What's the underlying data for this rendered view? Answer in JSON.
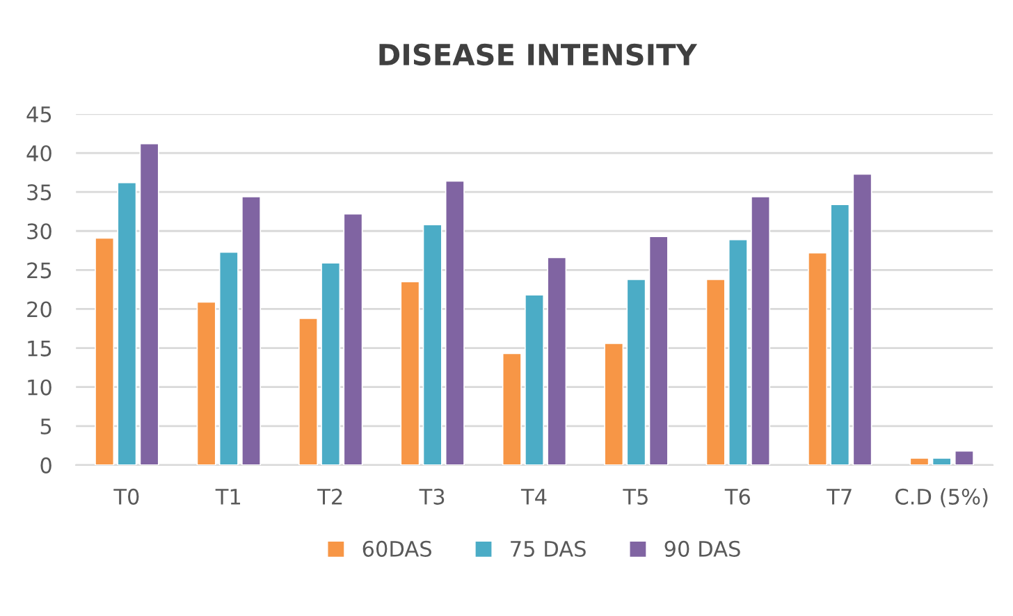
{
  "chart_data": {
    "type": "bar",
    "title": "DISEASE INTENSITY",
    "categories": [
      "T0",
      "T1",
      "T2",
      "T3",
      "T4",
      "T5",
      "T6",
      "T7",
      "C.D (5%)"
    ],
    "series": [
      {
        "name": "60DAS",
        "color": "#f79646",
        "values": [
          29.1,
          20.9,
          18.8,
          23.5,
          14.3,
          15.6,
          23.8,
          27.2,
          0.9
        ]
      },
      {
        "name": "75 DAS",
        "color": "#4bacc6",
        "values": [
          36.2,
          27.3,
          25.9,
          30.8,
          21.8,
          23.8,
          28.9,
          33.4,
          0.9
        ]
      },
      {
        "name": "90 DAS",
        "color": "#8064a2",
        "values": [
          41.2,
          34.4,
          32.2,
          36.4,
          26.6,
          29.3,
          34.4,
          37.3,
          1.8
        ]
      }
    ],
    "ylim": [
      0,
      45
    ],
    "yticks": [
      0,
      5,
      10,
      15,
      20,
      25,
      30,
      35,
      40,
      45
    ],
    "grid": "y",
    "legend": "bottom"
  }
}
